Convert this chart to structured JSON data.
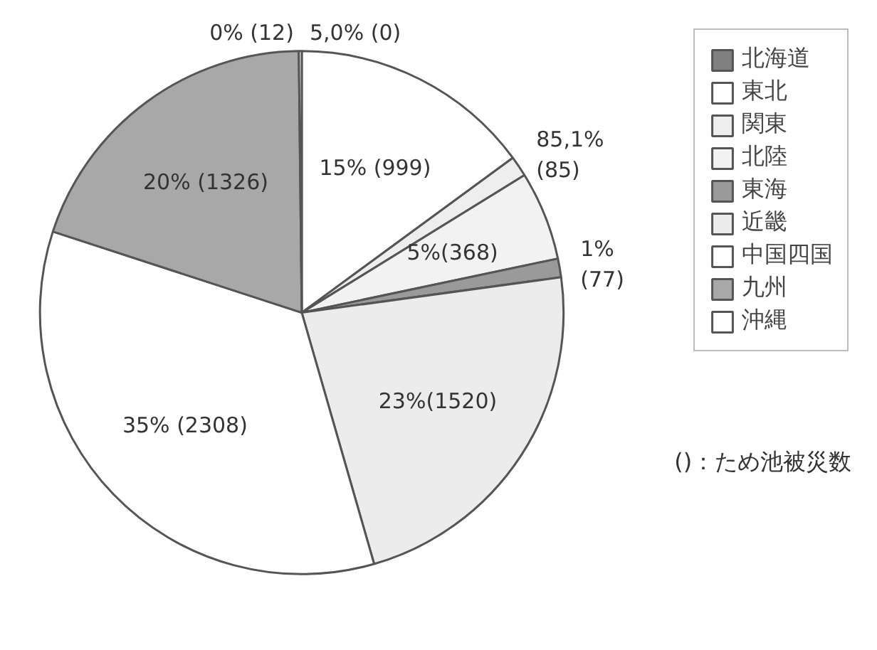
{
  "chart_data": {
    "type": "pie",
    "categories": [
      "北海道",
      "東北",
      "関東",
      "北陸",
      "東海",
      "近畿",
      "中国四国",
      "九州",
      "沖縄"
    ],
    "values": [
      0,
      999,
      85,
      368,
      77,
      1520,
      2308,
      1326,
      12
    ],
    "value_labels": [
      "5,0% (0)",
      "15% (999)",
      "85,1% (85)",
      "5%(368)",
      "1% (77)",
      "23%(1520)",
      "35% (2308)",
      "20% (1326)",
      "0% (12)"
    ],
    "colors": [
      "#808080",
      "#ffffff",
      "#eeeeee",
      "#f2f2f2",
      "#9a9a9a",
      "#ececec",
      "#ffffff",
      "#a8a8a8",
      "#ffffff"
    ],
    "legend": "right",
    "annotations": [
      "()：ため池被災数"
    ]
  }
}
